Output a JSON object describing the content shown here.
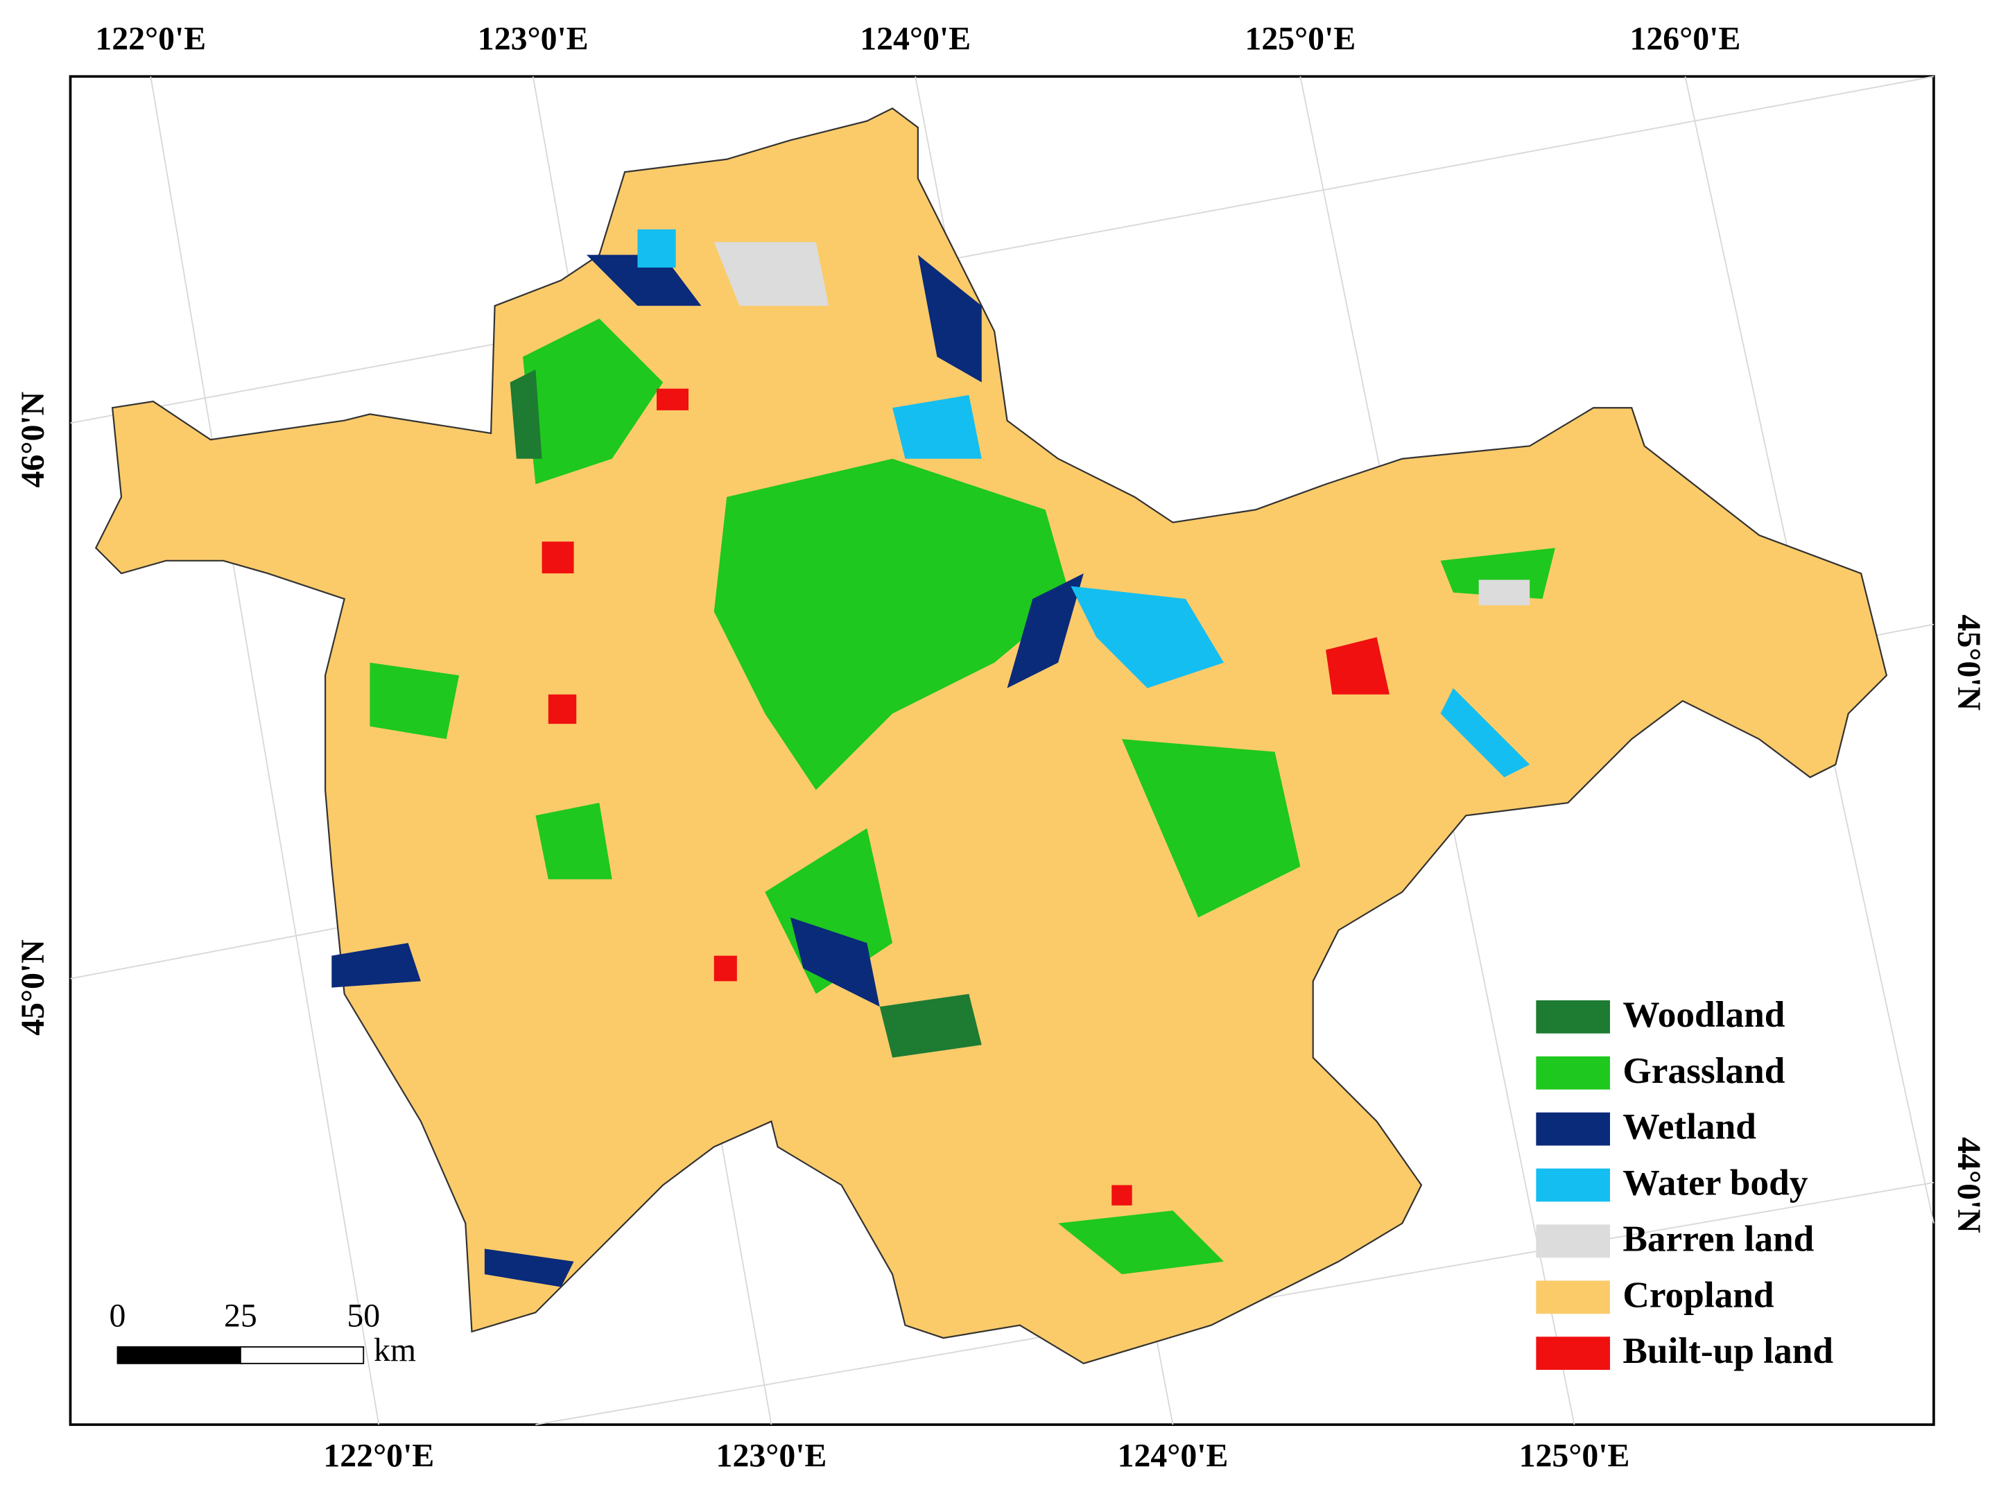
{
  "map": {
    "top_labels": [
      "122°0'E",
      "123°0'E",
      "124°0'E",
      "125°0'E",
      "126°0'E"
    ],
    "bottom_labels": [
      "122°0'E",
      "123°0'E",
      "124°0'E",
      "125°0'E"
    ],
    "left_labels": [
      "46°0'N",
      "45°0'N"
    ],
    "right_labels": [
      "45°0'N",
      "44°0'N"
    ],
    "legend": [
      {
        "label": "Woodland",
        "color": "#1e7b32"
      },
      {
        "label": "Grassland",
        "color": "#1ec81e"
      },
      {
        "label": "Wetland",
        "color": "#0a2a7a"
      },
      {
        "label": "Water body",
        "color": "#14bef0"
      },
      {
        "label": "Barren land",
        "color": "#dcdcdc"
      },
      {
        "label": "Cropland",
        "color": "#fbcb6a"
      },
      {
        "label": "Built-up land",
        "color": "#f01010"
      }
    ],
    "scale_bar": {
      "ticks": [
        0,
        25,
        50
      ],
      "unit": "km"
    }
  }
}
